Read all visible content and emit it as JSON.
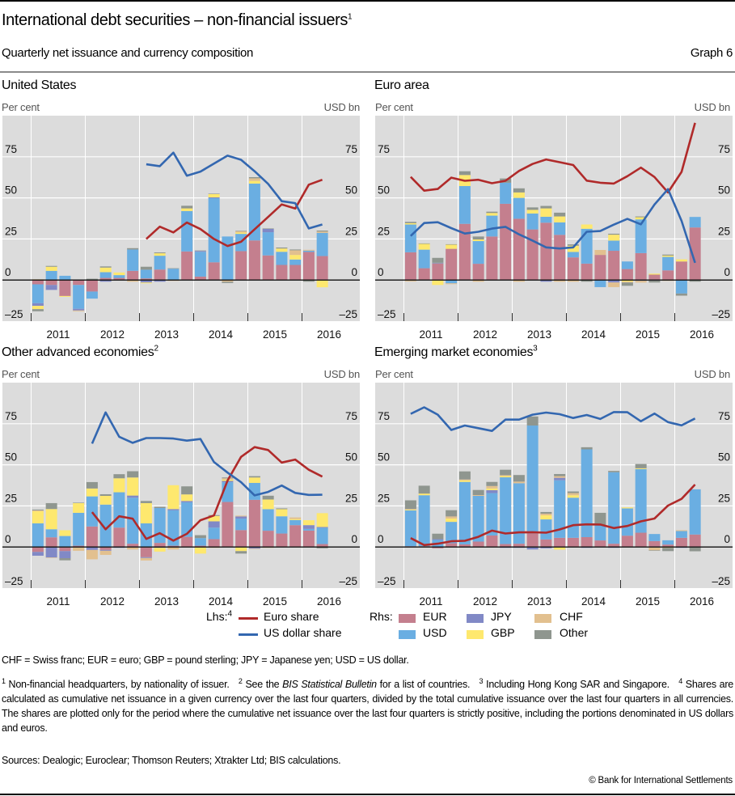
{
  "header": {
    "title": "International debt securities – non-financial issuers",
    "title_note": "1",
    "subtitle": "Quarterly net issuance and currency composition",
    "graph_number": "Graph 6"
  },
  "colors": {
    "EUR": "#c47f8e",
    "USD": "#6aaee2",
    "JPY": "#8189c6",
    "GBP": "#fee86e",
    "CHF": "#e2c08f",
    "Other": "#8f968f",
    "euro_share": "#b02a2a",
    "usd_share": "#3367b0",
    "plot_bg": "#dcdcdc"
  },
  "legend": {
    "lhs_label": "Lhs:",
    "lhs_note": "4",
    "euro_share": "Euro share",
    "usd_share": "US dollar share",
    "rhs_label": "Rhs:",
    "EUR": "EUR",
    "JPY": "JPY",
    "CHF": "CHF",
    "USD": "USD",
    "GBP": "GBP",
    "Other": "Other"
  },
  "chart_data": [
    {
      "type": "bar+line",
      "title": "United States",
      "title_note": "",
      "ylabel_left": "Per cent",
      "ylabel_right": "USD bn",
      "ylim": [
        -25,
        100
      ],
      "y_ticks": [
        "75",
        "50",
        "25",
        "0",
        "–25"
      ],
      "y_tick_values": [
        75,
        50,
        25,
        0,
        -25
      ],
      "years": [
        "2011",
        "2012",
        "2013",
        "2014",
        "2015",
        "2016"
      ],
      "x_quarter_start": 2011.0,
      "bars": {
        "EUR": [
          -2.6,
          -3,
          -9.7,
          -3,
          -7,
          1.3,
          1.3,
          5.6,
          1,
          6.4,
          0,
          17.4,
          2.1,
          10.8,
          0,
          17.6,
          24.1,
          15,
          9.2,
          9.2,
          17.1,
          14.6
        ],
        "USD": [
          -11.5,
          5.6,
          2.6,
          -14.5,
          -4.3,
          3.5,
          1.7,
          13,
          5.3,
          8.4,
          6.9,
          24.6,
          15.1,
          39,
          26.5,
          10.5,
          34.6,
          14.1,
          8,
          3.3,
          0.8,
          14.1
        ],
        "JPY": [
          -1.6,
          -3,
          0,
          -1,
          0,
          -1,
          0,
          0,
          -1.5,
          -1,
          0,
          0,
          0.5,
          0.5,
          0,
          0,
          0,
          2,
          0,
          0,
          0,
          0
        ],
        "GBP": [
          -2,
          2.5,
          -0.5,
          0,
          0,
          2.8,
          1.6,
          0,
          -0.5,
          1.5,
          0,
          1.6,
          0,
          2,
          0,
          0.8,
          1.6,
          0,
          2,
          2.8,
          0,
          -4.4
        ],
        "CHF": [
          0.5,
          0,
          0,
          -0.5,
          0.3,
          0,
          0,
          -1,
          0,
          0,
          -0.5,
          0,
          0,
          0,
          -1,
          0.8,
          1.6,
          0,
          0,
          2.8,
          0.5,
          0.8
        ],
        "Other": [
          -1.3,
          0.5,
          0,
          0,
          0.5,
          0.7,
          0,
          0.8,
          1.8,
          0.5,
          0.3,
          1.6,
          0.3,
          0.3,
          -0.8,
          0.3,
          0.7,
          0.3,
          0.6,
          0.5,
          -1,
          0.6
        ]
      },
      "euro_share": [
        null,
        null,
        null,
        null,
        null,
        null,
        null,
        null,
        25,
        32.5,
        29,
        35,
        31,
        25,
        20.7,
        23.3,
        30.9,
        38.4,
        46,
        43.5,
        58,
        61
      ],
      "usd_share": [
        null,
        null,
        null,
        null,
        null,
        null,
        null,
        null,
        70.4,
        69.3,
        77.5,
        63.5,
        66,
        70.8,
        75.7,
        73.2,
        66.2,
        58.5,
        48,
        46.8,
        31.4,
        33.8
      ]
    },
    {
      "type": "bar+line",
      "title": "Euro area",
      "title_note": "",
      "ylabel_left": "Per cent",
      "ylabel_right": "USD bn",
      "ylim": [
        -25,
        100
      ],
      "y_ticks": [
        "75",
        "50",
        "25",
        "0",
        "–25"
      ],
      "y_tick_values": [
        75,
        50,
        25,
        0,
        -25
      ],
      "years": [
        "2011",
        "2012",
        "2013",
        "2014",
        "2015",
        "2016"
      ],
      "x_quarter_start": 2011.0,
      "bars": {
        "EUR": [
          16.9,
          7.2,
          10.2,
          19,
          34.2,
          9.9,
          26.5,
          46.4,
          37.3,
          30.8,
          34.9,
          27.5,
          13.8,
          10,
          15.3,
          17.8,
          6.7,
          16.4,
          3.3,
          5.9,
          11.3,
          32
        ],
        "USD": [
          16.9,
          11.3,
          0.3,
          -2,
          23,
          13.8,
          12.7,
          12.8,
          12.7,
          9.7,
          3.6,
          7.6,
          3.3,
          21.2,
          -4.3,
          6.2,
          4.6,
          20.5,
          0,
          8.2,
          -8.2,
          6.4
        ],
        "JPY": [
          0,
          0,
          0,
          0,
          0,
          0,
          0,
          0,
          0,
          0,
          -1,
          0,
          0,
          0,
          0,
          -1.5,
          0,
          -0.5,
          -0.3,
          0,
          0,
          0
        ],
        "GBP": [
          0.8,
          3.5,
          -3,
          2.5,
          6.7,
          1,
          1.6,
          0,
          3.3,
          2.2,
          5.1,
          3.6,
          3.8,
          2.6,
          0,
          3.6,
          -1,
          1.3,
          0.6,
          0.8,
          1.3,
          0
        ],
        "CHF": [
          -0.8,
          0,
          0,
          -0.5,
          0,
          -1,
          0,
          0,
          -1,
          0,
          0,
          -1,
          -1,
          0,
          3,
          -2.8,
          -0.5,
          -1,
          0,
          -0.5,
          0,
          0
        ],
        "Other": [
          0.8,
          0.3,
          3,
          0.3,
          2.3,
          1.8,
          0.8,
          2.6,
          2.5,
          1.5,
          1.5,
          2.3,
          0.8,
          -1,
          0,
          0.6,
          -2,
          0.5,
          -1.2,
          0.6,
          -1.3,
          -1
        ]
      },
      "euro_share": [
        62.8,
        54.4,
        55.4,
        62.3,
        60.4,
        61,
        58.9,
        60.4,
        66.4,
        70.6,
        73.4,
        71.7,
        70,
        60.5,
        59.2,
        58.7,
        63.2,
        68.4,
        62.7,
        53.3,
        65.8,
        95.6
      ],
      "usd_share": [
        26.8,
        34.7,
        35.2,
        31.6,
        28.3,
        29.4,
        31.3,
        32.4,
        27.8,
        24,
        19.9,
        19.2,
        19.9,
        29.4,
        29.8,
        33.7,
        37.2,
        33.9,
        45.9,
        55.3,
        36,
        10.5
      ]
    },
    {
      "type": "bar+line",
      "title": "Other advanced economies",
      "title_note": "2",
      "ylabel_left": "Per cent",
      "ylabel_right": "USD bn",
      "ylim": [
        -25,
        100
      ],
      "y_ticks": [
        "75",
        "50",
        "25",
        "0",
        "–25"
      ],
      "y_tick_values": [
        75,
        50,
        25,
        0,
        -25
      ],
      "years": [
        "2011",
        "2012",
        "2013",
        "2014",
        "2015",
        "2016"
      ],
      "x_quarter_start": 2011.0,
      "bars": {
        "EUR": [
          -3,
          5.9,
          -2.5,
          0.8,
          12.5,
          -1.8,
          11.8,
          2,
          -6.2,
          2.5,
          0.8,
          6.2,
          0.8,
          4.8,
          27.4,
          10.3,
          28.7,
          9.9,
          8.2,
          13.3,
          10,
          1.8
        ],
        "USD": [
          14.4,
          4.9,
          6.7,
          20,
          18.3,
          25.8,
          21.5,
          28,
          14.4,
          21.2,
          21.5,
          21,
          4.6,
          7,
          12,
          7,
          10.3,
          13.1,
          10.5,
          3.1,
          1,
          9.9
        ],
        "JPY": [
          -2.3,
          -6.4,
          -4.3,
          0,
          -1.8,
          -0.5,
          -0.5,
          1.3,
          -0.5,
          -0.5,
          0.8,
          0.8,
          0,
          3.8,
          0.8,
          1.3,
          -1,
          0,
          0,
          0,
          2.3,
          0.5
        ],
        "GBP": [
          7.4,
          12.3,
          3.5,
          5.9,
          4.8,
          5.3,
          8.5,
          11,
          12.3,
          -2.3,
          14.5,
          4,
          -4,
          3.3,
          0.8,
          -2.5,
          3.3,
          5.9,
          4.3,
          0.6,
          3,
          8.4
        ],
        "CHF": [
          0.5,
          -0.3,
          0,
          -2.3,
          -5.7,
          -2.5,
          0,
          -1.5,
          -1.5,
          0,
          -1.5,
          0,
          0,
          -0.5,
          0.8,
          0.5,
          -0.3,
          -0.5,
          0,
          1,
          0,
          0
        ],
        "Other": [
          0.5,
          3.6,
          -1.3,
          0.3,
          3.9,
          1,
          2.5,
          3.8,
          1.3,
          0.8,
          0,
          4.9,
          1.8,
          0.5,
          0.5,
          -1.5,
          0.8,
          2.3,
          0.5,
          0,
          0,
          -0.8
        ]
      },
      "euro_share": [
        null,
        null,
        null,
        null,
        21.2,
        10.8,
        18.7,
        17.2,
        4.9,
        8.4,
        3.9,
        8,
        16.3,
        19.2,
        40.4,
        54.8,
        60.8,
        59,
        51.4,
        53.2,
        47,
        42.8
      ],
      "usd_share": [
        null,
        null,
        null,
        null,
        62.9,
        81.9,
        67.1,
        63.4,
        66.3,
        66.3,
        66,
        64.7,
        65.7,
        51.7,
        45.3,
        39.4,
        31.4,
        33.5,
        37.4,
        32.9,
        31.7,
        31.8
      ]
    },
    {
      "type": "bar+line",
      "title": "Emerging market economies",
      "title_note": "3",
      "ylabel_left": "Per cent",
      "ylabel_right": "USD bn",
      "ylim": [
        -25,
        100
      ],
      "y_ticks": [
        "75",
        "50",
        "25",
        "0",
        "–25"
      ],
      "y_tick_values": [
        75,
        50,
        25,
        0,
        -25
      ],
      "years": [
        "2011",
        "2012",
        "2013",
        "2014",
        "2015",
        "2016"
      ],
      "x_quarter_start": 2011.0,
      "bars": {
        "EUR": [
          0.5,
          0.5,
          -0.8,
          2.3,
          1.6,
          3.3,
          7,
          1.8,
          2,
          8.2,
          4.6,
          5.6,
          5.6,
          6,
          4,
          2,
          6.9,
          8.7,
          3.6,
          1.5,
          5.6,
          7.6
        ],
        "USD": [
          21.8,
          31,
          4.3,
          13,
          38,
          27.8,
          25.8,
          40.6,
          36.8,
          65.7,
          12.2,
          35,
          24.4,
          53.4,
          9.6,
          43.5,
          16.6,
          38.7,
          4.3,
          2.6,
          4.1,
          27.5
        ],
        "JPY": [
          0,
          0,
          0.5,
          0,
          0,
          0,
          1.8,
          -0.5,
          -0.5,
          -1.5,
          -0.8,
          1.5,
          0,
          -0.5,
          0,
          -0.5,
          0,
          0,
          0,
          0,
          -0.5,
          0
        ],
        "GBP": [
          0.5,
          1,
          0,
          2,
          1,
          0,
          1,
          0.8,
          0,
          0,
          2.5,
          -1.6,
          1.5,
          0,
          0,
          0,
          0.6,
          0.5,
          0,
          -0.5,
          0,
          0
        ],
        "CHF": [
          0.3,
          0,
          0,
          1.3,
          0.5,
          0.5,
          1.5,
          0.5,
          1,
          0,
          1,
          1,
          1.3,
          0,
          0,
          0,
          0,
          0,
          -2,
          0,
          0.5,
          0
        ],
        "Other": [
          5.3,
          4.8,
          3.3,
          3.8,
          4.9,
          3.1,
          2.5,
          3.3,
          4,
          5.5,
          1,
          1.3,
          1,
          1.3,
          7.2,
          0.8,
          0,
          2.6,
          -0.3,
          -2,
          0,
          -2.6
        ]
      },
      "euro_share": [
        5.4,
        1.2,
        2,
        3.5,
        3.8,
        6.2,
        10,
        8.2,
        8.9,
        9,
        8.7,
        10.7,
        13.3,
        13.8,
        13.7,
        11.5,
        12.8,
        15.6,
        17.3,
        25.2,
        29.3,
        38
      ],
      "usd_share": [
        81,
        85,
        80.5,
        71.2,
        73.9,
        72.3,
        70.6,
        77.5,
        77.5,
        80.5,
        81.8,
        80.8,
        78.5,
        80.3,
        77.9,
        82.1,
        82,
        76.5,
        81.2,
        76,
        74,
        78.2
      ]
    }
  ],
  "notes": {
    "abbreviations": "CHF = Swiss franc; EUR = euro; GBP = pound sterling; JPY = Japanese yen; USD = US dollar.",
    "fn1_num": "1",
    "fn1": "Non-financial headquarters, by nationality of issuer.",
    "fn2_num": "2",
    "fn2_pre": "See the ",
    "fn2_italic": "BIS Statistical Bulletin",
    "fn2_post": " for a list of countries.",
    "fn3_num": "3",
    "fn3": "Including Hong Kong SAR and Singapore.",
    "fn4_num": "4",
    "fn4": "Shares are calculated as cumulative net issuance in a given currency over the last four quarters, divided by the total cumulative issuance over the last four quarters in all currencies. The shares are plotted only for the period where the cumulative net issuance over the last four quarters is strictly positive, including the portions denominated in US dollars and euros.",
    "sources": "Sources: Dealogic; Euroclear; Thomson Reuters; Xtrakter Ltd; BIS calculations.",
    "copyright": "© Bank for International Settlements"
  }
}
